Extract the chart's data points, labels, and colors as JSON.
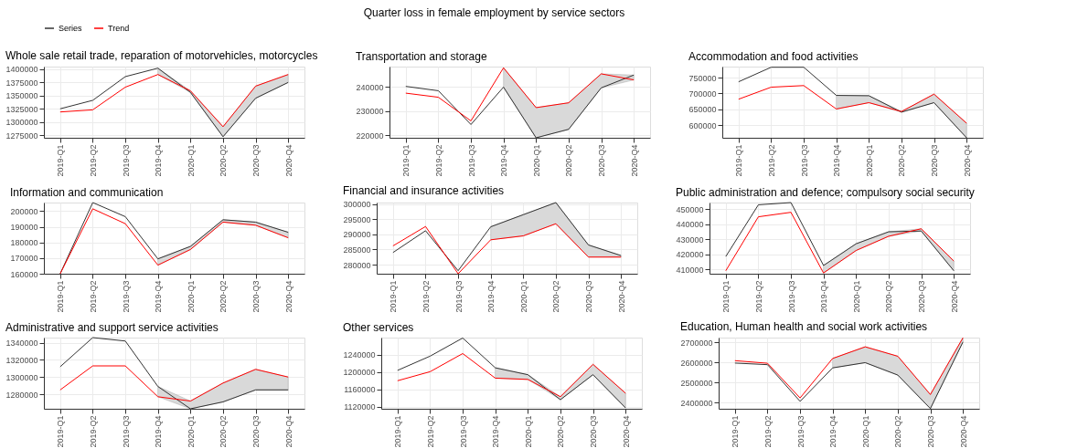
{
  "chart_data": [
    {
      "type": "line",
      "title": "Whole sale retail trade, reparation of motorvehicles, motorcycles",
      "annotations": [
        "Quarter loss in female employment by service sectors"
      ],
      "categories": [
        "2019-Q1",
        "2019-Q2",
        "2019-Q3",
        "2019-Q4",
        "2020-Q1",
        "2020-Q2",
        "2020-Q3",
        "2020-Q4"
      ],
      "ylim": [
        1270000,
        1405000
      ],
      "yticks": [
        1275000,
        1300000,
        1325000,
        1350000,
        1375000,
        1400000
      ],
      "grid": true,
      "legend": "top",
      "series": [
        {
          "name": "Series",
          "color": "#333333",
          "values": [
            1325000,
            1341000,
            1386000,
            1402000,
            1356000,
            1272000,
            1345000,
            1375000
          ],
          "lower": [
            null,
            null,
            null,
            1390000,
            1356000,
            1272000,
            1345000,
            1375000
          ],
          "upper": [
            null,
            null,
            null,
            1402000,
            1359000,
            1291000,
            1368000,
            1390000
          ]
        },
        {
          "name": "Trend",
          "color": "#ff0000",
          "values": [
            1319000,
            1323000,
            1366000,
            1390000,
            1359000,
            1291000,
            1368000,
            1390000
          ]
        }
      ]
    },
    {
      "type": "line",
      "title": "Transportation and storage",
      "categories": [
        "2019-Q1",
        "2019-Q2",
        "2019-Q3",
        "2019-Q4",
        "2020-Q1",
        "2020-Q2",
        "2020-Q3",
        "2020-Q4"
      ],
      "ylim": [
        219000,
        248500
      ],
      "yticks": [
        220000,
        230000,
        240000
      ],
      "grid": true,
      "legend": "top",
      "series": [
        {
          "name": "Series",
          "color": "#333333",
          "values": [
            240300,
            238500,
            224500,
            240000,
            219000,
            222500,
            239700,
            245000
          ],
          "lower": [
            null,
            null,
            null,
            240000,
            219000,
            222500,
            239700,
            243000
          ],
          "upper": [
            null,
            null,
            null,
            248000,
            231500,
            233500,
            245500,
            245000
          ]
        },
        {
          "name": "Trend",
          "color": "#ff0000",
          "values": [
            237500,
            235800,
            226000,
            248000,
            231500,
            233500,
            245500,
            243000
          ]
        }
      ]
    },
    {
      "type": "line",
      "title": "Accommodation and food activities",
      "categories": [
        "2019-Q1",
        "2019-Q2",
        "2019-Q3",
        "2019-Q4",
        "2020-Q1",
        "2020-Q2",
        "2020-Q3",
        "2020-Q4"
      ],
      "ylim": [
        560000,
        785000
      ],
      "yticks": [
        600000,
        650000,
        700000,
        750000
      ],
      "grid": true,
      "legend": "top",
      "series": [
        {
          "name": "Series",
          "color": "#333333",
          "values": [
            737000,
            783000,
            783000,
            694000,
            693000,
            641000,
            671000,
            560000
          ],
          "lower": [
            null,
            null,
            null,
            651000,
            671000,
            641000,
            671000,
            560000
          ],
          "upper": [
            null,
            null,
            null,
            694000,
            693000,
            643000,
            698000,
            606000
          ]
        },
        {
          "name": "Trend",
          "color": "#ff0000",
          "values": [
            682000,
            720000,
            725000,
            651000,
            671000,
            643000,
            698000,
            606000
          ]
        }
      ]
    },
    {
      "type": "line",
      "title": "Information and communication",
      "categories": [
        "2019-Q1",
        "2019-Q2",
        "2019-Q3",
        "2019-Q4",
        "2020-Q1",
        "2020-Q2",
        "2020-Q3",
        "2020-Q4"
      ],
      "ylim": [
        160000,
        205500
      ],
      "yticks": [
        160000,
        170000,
        180000,
        190000,
        200000
      ],
      "grid": true,
      "legend": "top",
      "series": [
        {
          "name": "Series",
          "color": "#333333",
          "values": [
            160000,
            205500,
            196500,
            169500,
            177500,
            194500,
            193000,
            186500
          ],
          "lower": [
            null,
            null,
            null,
            165500,
            175500,
            193000,
            191000,
            183000
          ],
          "upper": [
            null,
            null,
            null,
            169500,
            177500,
            194500,
            193000,
            186500
          ]
        },
        {
          "name": "Trend",
          "color": "#ff0000",
          "values": [
            160000,
            201500,
            192000,
            165500,
            175500,
            193000,
            191000,
            183000
          ]
        }
      ]
    },
    {
      "type": "line",
      "title": "Financial and insurance activities",
      "categories": [
        "2019-Q1",
        "2019-Q2",
        "2019-Q3",
        "2019-Q4",
        "2020-Q1",
        "2020-Q2",
        "2020-Q3",
        "2020-Q4"
      ],
      "ylim": [
        277000,
        300500
      ],
      "yticks": [
        280000,
        285000,
        290000,
        295000,
        300000
      ],
      "grid": true,
      "legend": "top",
      "series": [
        {
          "name": "Series",
          "color": "#333333",
          "values": [
            284000,
            291200,
            278000,
            292500,
            296500,
            300500,
            286500,
            283000
          ],
          "lower": [
            null,
            null,
            null,
            288200,
            289500,
            293500,
            282500,
            282500
          ],
          "upper": [
            null,
            null,
            null,
            292500,
            296500,
            300500,
            286500,
            283000
          ]
        },
        {
          "name": "Trend",
          "color": "#ff0000",
          "values": [
            286200,
            292600,
            277000,
            288200,
            289500,
            293500,
            282500,
            282500
          ]
        }
      ]
    },
    {
      "type": "line",
      "title": "Public administration and defence; compulsory social security",
      "categories": [
        "2019-Q1",
        "2019-Q2",
        "2019-Q3",
        "2019-Q4",
        "2020-Q1",
        "2020-Q2",
        "2020-Q3",
        "2020-Q4"
      ],
      "ylim": [
        407000,
        454500
      ],
      "yticks": [
        410000,
        420000,
        430000,
        440000,
        450000
      ],
      "grid": true,
      "legend": "top",
      "series": [
        {
          "name": "Series",
          "color": "#333333",
          "values": [
            418500,
            453000,
            454500,
            412500,
            427000,
            435000,
            435500,
            409000
          ],
          "lower": [
            null,
            null,
            null,
            407500,
            422500,
            432000,
            435500,
            409000
          ],
          "upper": [
            null,
            null,
            null,
            412500,
            427000,
            435000,
            437000,
            415500
          ]
        },
        {
          "name": "Trend",
          "color": "#ff0000",
          "values": [
            409000,
            445000,
            448000,
            407500,
            422500,
            432000,
            437000,
            415500
          ]
        }
      ]
    },
    {
      "type": "line",
      "title": "Administrative and support service activities",
      "categories": [
        "2019-Q1",
        "2019-Q2",
        "2019-Q3",
        "2019-Q4",
        "2020-Q1",
        "2020-Q2",
        "2020-Q3",
        "2020-Q4"
      ],
      "ylim": [
        1263000,
        1346000
      ],
      "yticks": [
        1280000,
        1300000,
        1320000,
        1340000
      ],
      "grid": true,
      "legend": "top",
      "series": [
        {
          "name": "Series",
          "color": "#333333",
          "values": [
            1312000,
            1346000,
            1342000,
            1289000,
            1263000,
            1271000,
            1285000,
            1285000
          ],
          "lower": [
            null,
            null,
            null,
            1277000,
            1263000,
            1271000,
            1285000,
            1285000
          ],
          "upper": [
            null,
            null,
            null,
            1289000,
            1272000,
            1293000,
            1309000,
            1300000
          ]
        },
        {
          "name": "Trend",
          "color": "#ff0000",
          "values": [
            1285000,
            1313000,
            1313000,
            1277000,
            1272000,
            1293000,
            1309000,
            1300000
          ]
        }
      ]
    },
    {
      "type": "line",
      "title": "Other services",
      "categories": [
        "2019-Q1",
        "2019-Q2",
        "2019-Q3",
        "2019-Q4",
        "2020-Q1",
        "2020-Q2",
        "2020-Q3",
        "2020-Q4"
      ],
      "ylim": [
        1115000,
        1280000
      ],
      "yticks": [
        1120000,
        1160000,
        1200000,
        1240000
      ],
      "grid": true,
      "legend": "top",
      "series": [
        {
          "name": "Series",
          "color": "#333333",
          "values": [
            1204000,
            1237000,
            1279000,
            1210000,
            1194000,
            1136000,
            1194000,
            1117000
          ],
          "lower": [
            null,
            null,
            null,
            1186000,
            1183000,
            1136000,
            1194000,
            1117000
          ],
          "upper": [
            null,
            null,
            null,
            1210000,
            1194000,
            1143000,
            1218000,
            1151000
          ]
        },
        {
          "name": "Trend",
          "color": "#ff0000",
          "values": [
            1180000,
            1201000,
            1243000,
            1186000,
            1183000,
            1143000,
            1218000,
            1151000
          ]
        }
      ]
    },
    {
      "type": "line",
      "title": "Education, Human health and social work activities",
      "categories": [
        "2019-Q1",
        "2019-Q2",
        "2019-Q3",
        "2019-Q4",
        "2020-Q1",
        "2020-Q2",
        "2020-Q3",
        "2020-Q4"
      ],
      "ylim": [
        2370000,
        2725000
      ],
      "yticks": [
        2400000,
        2500000,
        2600000,
        2700000
      ],
      "grid": true,
      "legend": "top",
      "series": [
        {
          "name": "Series",
          "color": "#333333",
          "values": [
            2598000,
            2590000,
            2407000,
            2574000,
            2600000,
            2538000,
            2371000,
            2703000
          ],
          "lower": [
            null,
            null,
            null,
            2574000,
            2600000,
            2538000,
            2371000,
            2703000
          ],
          "upper": [
            null,
            null,
            null,
            2621000,
            2679000,
            2632000,
            2441000,
            2724000
          ]
        },
        {
          "name": "Trend",
          "color": "#ff0000",
          "values": [
            2610000,
            2597000,
            2424000,
            2621000,
            2679000,
            2632000,
            2441000,
            2724000
          ]
        }
      ]
    }
  ]
}
